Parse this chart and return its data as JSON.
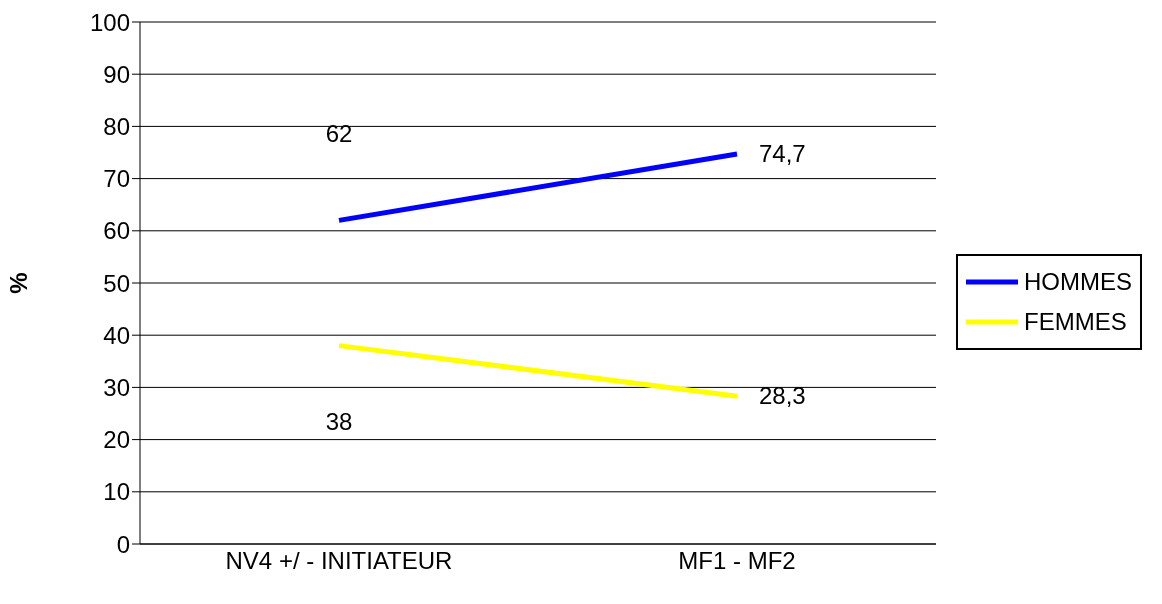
{
  "chart_data": {
    "type": "line",
    "categories": [
      "NV4 +/ - INITIATEUR",
      "MF1 - MF2"
    ],
    "ylabel": "%",
    "ylim": [
      0,
      100
    ],
    "yticks": [
      0,
      10,
      20,
      30,
      40,
      50,
      60,
      70,
      80,
      90,
      100
    ],
    "grid": "y",
    "legend": "right",
    "marker": "none",
    "series": [
      {
        "name": "HOMMES",
        "color": "#0000ff",
        "values": [
          62,
          74.7
        ],
        "value_labels": [
          "62",
          "74,7"
        ]
      },
      {
        "name": "FEMMES",
        "color": "#ffff00",
        "values": [
          38,
          28.3
        ],
        "value_labels": [
          "38",
          "28,3"
        ]
      }
    ]
  }
}
